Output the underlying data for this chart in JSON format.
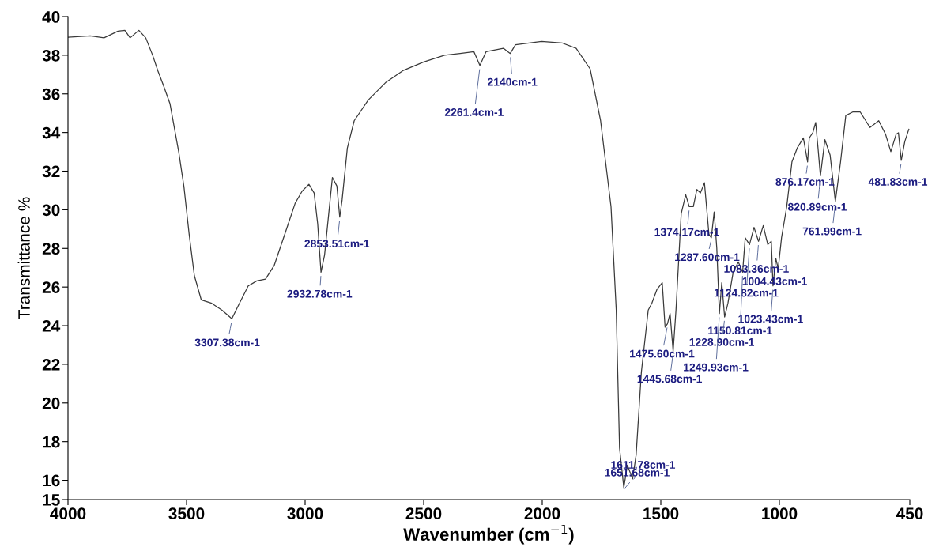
{
  "chart_data": {
    "type": "line",
    "xlabel": "Wavenumber (cm$^{−1}$)",
    "ylabel": "Transmittance %",
    "xlim": [
      4000,
      450
    ],
    "ylim": [
      15,
      40
    ],
    "xticks": [
      4000,
      3500,
      3000,
      2500,
      2000,
      1500,
      1000,
      450
    ],
    "yticks": [
      15,
      16,
      18,
      20,
      22,
      24,
      26,
      28,
      30,
      32,
      34,
      36,
      38,
      40
    ],
    "grid": false,
    "marker": "none",
    "line_style": "solid",
    "series": [
      {
        "color": "#3a3a3a",
        "x": [
          4000,
          3906,
          3848,
          3789,
          3760,
          3738,
          3701,
          3672,
          3643,
          3621,
          3599,
          3570,
          3533,
          3511,
          3489,
          3467,
          3438,
          3394,
          3350,
          3309,
          3277,
          3240,
          3204,
          3167,
          3130,
          3086,
          3042,
          3013,
          2984,
          2962,
          2947,
          2933,
          2918,
          2885,
          2866,
          2854,
          2844,
          2822,
          2793,
          2734,
          2661,
          2588,
          2500,
          2412,
          2346,
          2288,
          2263,
          2237,
          2164,
          2135,
          2113,
          2003,
          1915,
          1857,
          1798,
          1754,
          1710,
          1688,
          1674,
          1656,
          1641,
          1619,
          1604,
          1582,
          1553,
          1538,
          1516,
          1494,
          1482,
          1472,
          1461,
          1448,
          1436,
          1414,
          1395,
          1380,
          1363,
          1348,
          1333,
          1316,
          1297,
          1287,
          1275,
          1264,
          1253,
          1243,
          1231,
          1217,
          1195,
          1173,
          1155,
          1144,
          1126,
          1107,
          1088,
          1068,
          1049,
          1034,
          1027,
          1015,
          1005,
          991,
          969,
          947,
          925,
          899,
          881,
          874,
          859,
          847,
          837,
          827,
          808,
          786,
          764,
          742,
          720,
          691,
          659,
          618,
          581,
          552,
          530,
          508,
          498,
          486,
          471,
          454
        ],
        "values": [
          38.93,
          39.0,
          38.9,
          39.25,
          39.29,
          38.9,
          39.29,
          38.9,
          38.0,
          37.2,
          36.49,
          35.5,
          33.0,
          31.2,
          28.73,
          26.59,
          25.34,
          25.16,
          24.8,
          24.36,
          25.16,
          26.06,
          26.32,
          26.41,
          27.13,
          28.73,
          30.34,
          30.96,
          31.32,
          30.87,
          29.27,
          26.77,
          27.66,
          31.67,
          31.23,
          29.62,
          30.51,
          33.19,
          34.61,
          35.68,
          36.58,
          37.2,
          37.65,
          38.0,
          38.09,
          38.18,
          37.47,
          38.18,
          38.36,
          38.09,
          38.54,
          38.72,
          38.63,
          38.36,
          37.29,
          34.61,
          30.16,
          24.81,
          17.67,
          15.62,
          16.78,
          16.07,
          17.32,
          21.6,
          24.81,
          25.16,
          25.88,
          26.23,
          23.92,
          24.1,
          24.63,
          22.67,
          24.81,
          29.8,
          30.78,
          30.16,
          30.16,
          31.05,
          30.87,
          31.4,
          28.73,
          28.55,
          29.89,
          28.02,
          24.63,
          26.23,
          24.45,
          25.16,
          26.77,
          27.3,
          26.77,
          28.55,
          28.2,
          29.09,
          28.37,
          29.18,
          28.2,
          28.37,
          26.06,
          27.48,
          26.95,
          28.55,
          30.16,
          32.48,
          33.19,
          33.72,
          32.48,
          33.72,
          33.99,
          34.52,
          33.19,
          31.76,
          33.63,
          32.83,
          30.43,
          32.48,
          34.88,
          35.06,
          35.06,
          34.26,
          34.61,
          33.9,
          33.01,
          33.9,
          33.99,
          32.56,
          33.54,
          34.17
        ]
      }
    ],
    "annotations": [
      {
        "text": "3307.38cm-1",
        "x": 3309,
        "y": 24.36
      },
      {
        "text": "2932.78cm-1",
        "x": 2933,
        "y": 26.77
      },
      {
        "text": "2853.51cm-1",
        "x": 2854,
        "y": 29.62
      },
      {
        "text": "2261.4cm-1",
        "x": 2263,
        "y": 37.47
      },
      {
        "text": "2140cm-1",
        "x": 2135,
        "y": 38.09
      },
      {
        "text": "1611.78cm-1",
        "x": 1619,
        "y": 16.07
      },
      {
        "text": "1651.68cm-1",
        "x": 1656,
        "y": 15.62
      },
      {
        "text": "1374.17cm-1",
        "x": 1380,
        "y": 30.16
      },
      {
        "text": "1287.60cm-1",
        "x": 1287,
        "y": 28.55
      },
      {
        "text": "1083.36cm-1",
        "x": 1088,
        "y": 28.37
      },
      {
        "text": "1004.43cm-1",
        "x": 1005,
        "y": 26.95
      },
      {
        "text": "1124.82cm-1",
        "x": 1126,
        "y": 28.2
      },
      {
        "text": "1023.43cm-1",
        "x": 1027,
        "y": 26.06
      },
      {
        "text": "1150.81cm-1",
        "x": 1155,
        "y": 26.77
      },
      {
        "text": "1228.90cm-1",
        "x": 1231,
        "y": 24.45
      },
      {
        "text": "1475.60cm-1",
        "x": 1472,
        "y": 24.1
      },
      {
        "text": "1249.93cm-1",
        "x": 1253,
        "y": 24.63
      },
      {
        "text": "1445.68cm-1",
        "x": 1448,
        "y": 22.67
      },
      {
        "text": "876.17cm-1",
        "x": 881,
        "y": 32.48
      },
      {
        "text": "820.89cm-1",
        "x": 827,
        "y": 31.76
      },
      {
        "text": "761.99cm-1",
        "x": 764,
        "y": 30.43
      },
      {
        "text": "481.83cm-1",
        "x": 486,
        "y": 32.56
      }
    ]
  }
}
